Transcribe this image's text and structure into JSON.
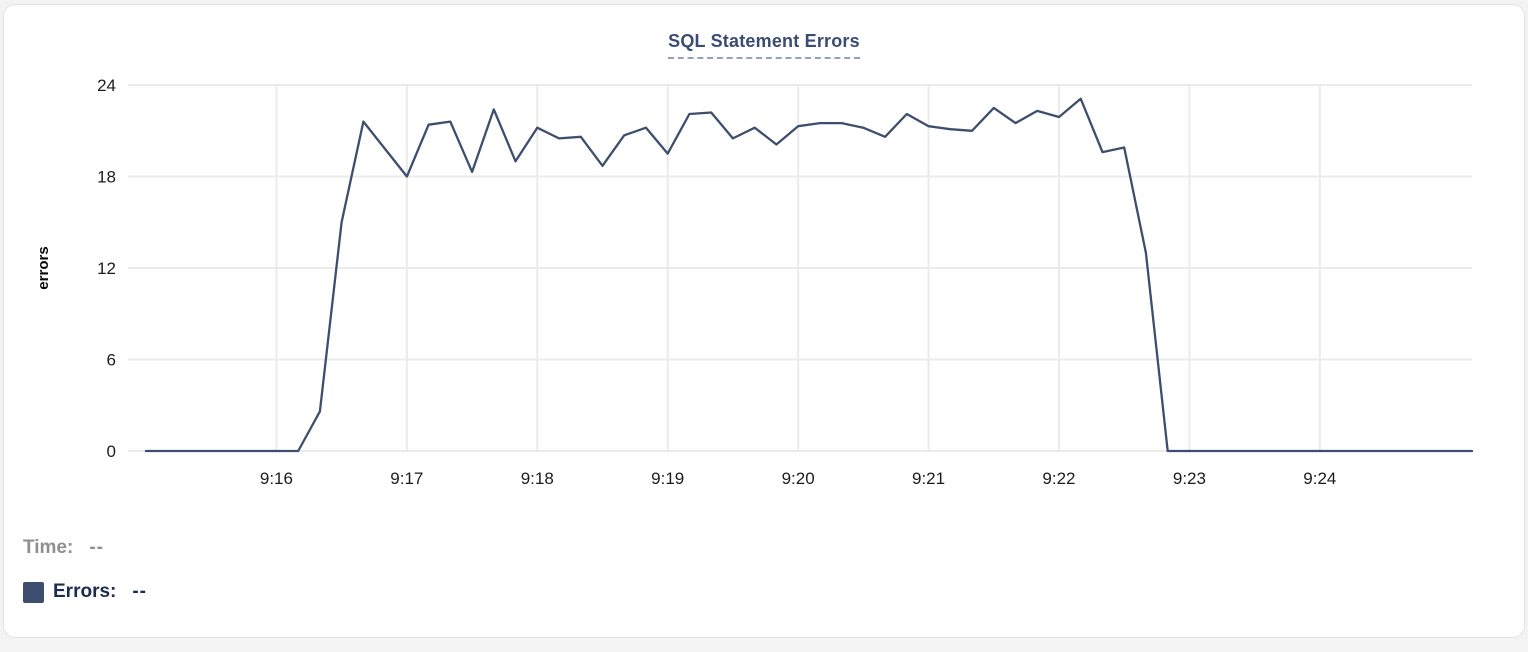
{
  "chart_data": {
    "type": "line",
    "title": "SQL Statement Errors",
    "xlabel": "",
    "ylabel": "errors",
    "ylim": [
      0,
      24
    ],
    "yticks": [
      0,
      6,
      12,
      18,
      24
    ],
    "xticks": [
      "9:16",
      "9:17",
      "9:18",
      "9:19",
      "9:20",
      "9:21",
      "9:22",
      "9:23",
      "9:24"
    ],
    "grid": true,
    "legend_position": "none",
    "x": [
      "9:15:00",
      "9:15:10",
      "9:15:20",
      "9:15:30",
      "9:15:40",
      "9:15:50",
      "9:16:00",
      "9:16:10",
      "9:16:20",
      "9:16:30",
      "9:16:40",
      "9:16:50",
      "9:17:00",
      "9:17:10",
      "9:17:20",
      "9:17:30",
      "9:17:40",
      "9:17:50",
      "9:18:00",
      "9:18:10",
      "9:18:20",
      "9:18:30",
      "9:18:40",
      "9:18:50",
      "9:19:00",
      "9:19:10",
      "9:19:20",
      "9:19:30",
      "9:19:40",
      "9:19:50",
      "9:20:00",
      "9:20:10",
      "9:20:20",
      "9:20:30",
      "9:20:40",
      "9:20:50",
      "9:21:00",
      "9:21:10",
      "9:21:20",
      "9:21:30",
      "9:21:40",
      "9:21:50",
      "9:22:00",
      "9:22:10",
      "9:22:20",
      "9:22:30",
      "9:22:40",
      "9:22:50",
      "9:23:00",
      "9:23:10",
      "9:23:20",
      "9:23:30",
      "9:23:40",
      "9:23:50",
      "9:24:00",
      "9:24:10",
      "9:24:20",
      "9:24:30",
      "9:24:40",
      "9:24:50",
      "9:25:00",
      "9:25:10"
    ],
    "series": [
      {
        "name": "Errors",
        "values": [
          0,
          0,
          0,
          0,
          0,
          0,
          0,
          0,
          2.6,
          15,
          21.6,
          19.8,
          18,
          21.4,
          21.6,
          18.3,
          22.4,
          19,
          21.2,
          20.5,
          20.6,
          18.7,
          20.7,
          21.2,
          19.5,
          22.1,
          22.2,
          20.5,
          21.2,
          20.1,
          21.3,
          21.5,
          21.5,
          21.2,
          20.6,
          22.1,
          21.3,
          21.1,
          21,
          22.5,
          21.5,
          22.3,
          21.9,
          23.1,
          19.6,
          19.9,
          13,
          0,
          0,
          0,
          0,
          0,
          0,
          0,
          0,
          0,
          0,
          0,
          0,
          0,
          0,
          0
        ]
      }
    ]
  },
  "footer": {
    "time_label": "Time:",
    "time_value": "--",
    "errors_label": "Errors:",
    "errors_value": "--"
  },
  "colors": {
    "line": "#3e4e6e",
    "title": "#3b4c72",
    "title_underline": "#94a1c0",
    "gridline": "#ebebeb",
    "tick_text": "#1c1c1c",
    "time_gray": "#8f8f8f",
    "errors_navy": "#1d2b52",
    "card_border": "#e2e2e2"
  }
}
